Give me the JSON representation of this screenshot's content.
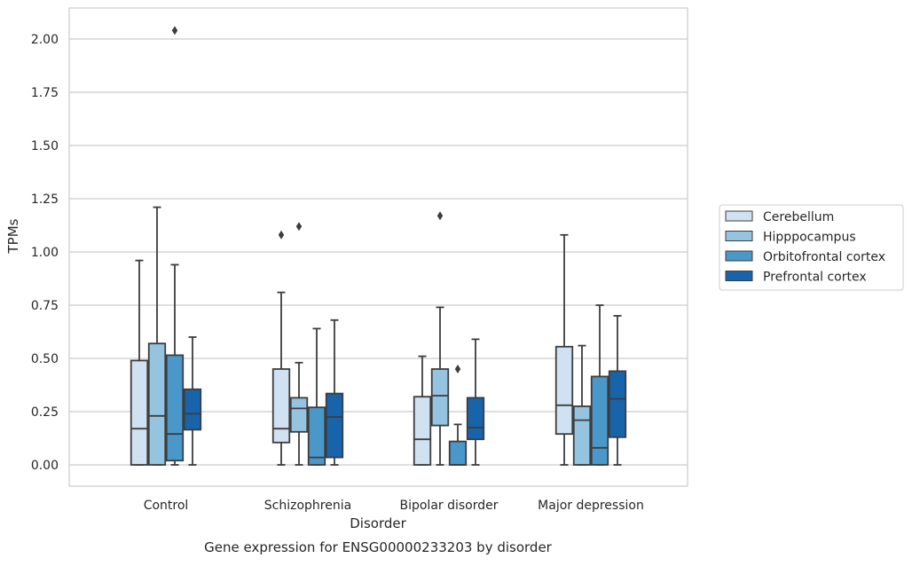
{
  "chart_data": {
    "type": "box",
    "title": "",
    "caption": "Gene expression for ENSG00000233203 by disorder",
    "xlabel": "Disorder",
    "ylabel": "TPMs",
    "ylim": [
      -0.1,
      2.15
    ],
    "yticks": [
      "0.00",
      "0.25",
      "0.50",
      "0.75",
      "1.00",
      "1.25",
      "1.50",
      "1.75",
      "2.00"
    ],
    "ytick_values": [
      0,
      0.25,
      0.5,
      0.75,
      1.0,
      1.25,
      1.5,
      1.75,
      2.0
    ],
    "grid": "horizontal",
    "legend_position": "right",
    "categories": [
      "Control",
      "Schizophrenia",
      "Bipolar disorder",
      "Major depression"
    ],
    "series": [
      {
        "name": "Cerebellum",
        "color": "#d0e1f2",
        "boxes": [
          {
            "min": 0.0,
            "q1": 0.0,
            "median": 0.17,
            "q3": 0.49,
            "max": 0.96,
            "outliers": []
          },
          {
            "min": 0.0,
            "q1": 0.105,
            "median": 0.17,
            "q3": 0.45,
            "max": 0.81,
            "outliers": [
              1.08
            ]
          },
          {
            "min": 0.0,
            "q1": 0.0,
            "median": 0.12,
            "q3": 0.32,
            "max": 0.51,
            "outliers": []
          },
          {
            "min": 0.0,
            "q1": 0.145,
            "median": 0.28,
            "q3": 0.555,
            "max": 1.08,
            "outliers": []
          }
        ]
      },
      {
        "name": "Hipppocampus",
        "color": "#94c4df",
        "boxes": [
          {
            "min": 0.0,
            "q1": 0.0,
            "median": 0.23,
            "q3": 0.57,
            "max": 1.21,
            "outliers": []
          },
          {
            "min": 0.0,
            "q1": 0.155,
            "median": 0.265,
            "q3": 0.315,
            "max": 0.48,
            "outliers": [
              1.12
            ]
          },
          {
            "min": 0.0,
            "q1": 0.185,
            "median": 0.325,
            "q3": 0.45,
            "max": 0.74,
            "outliers": [
              1.17
            ]
          },
          {
            "min": 0.0,
            "q1": 0.0,
            "median": 0.21,
            "q3": 0.275,
            "max": 0.56,
            "outliers": []
          }
        ]
      },
      {
        "name": "Orbitofrontal cortex",
        "color": "#4a98c9",
        "boxes": [
          {
            "min": 0.0,
            "q1": 0.02,
            "median": 0.145,
            "q3": 0.515,
            "max": 0.94,
            "outliers": [
              2.04
            ]
          },
          {
            "min": 0.0,
            "q1": 0.0,
            "median": 0.035,
            "q3": 0.27,
            "max": 0.64,
            "outliers": []
          },
          {
            "min": 0.0,
            "q1": 0.0,
            "median": 0.0,
            "q3": 0.11,
            "max": 0.19,
            "outliers": [
              0.45
            ]
          },
          {
            "min": 0.0,
            "q1": 0.0,
            "median": 0.08,
            "q3": 0.415,
            "max": 0.75,
            "outliers": []
          }
        ]
      },
      {
        "name": "Prefrontal cortex",
        "color": "#1764ab",
        "boxes": [
          {
            "min": 0.0,
            "q1": 0.165,
            "median": 0.24,
            "q3": 0.355,
            "max": 0.6,
            "outliers": []
          },
          {
            "min": 0.0,
            "q1": 0.035,
            "median": 0.225,
            "q3": 0.335,
            "max": 0.68,
            "outliers": []
          },
          {
            "min": 0.0,
            "q1": 0.12,
            "median": 0.175,
            "q3": 0.315,
            "max": 0.59,
            "outliers": []
          },
          {
            "min": 0.0,
            "q1": 0.13,
            "median": 0.31,
            "q3": 0.44,
            "max": 0.7,
            "outliers": []
          }
        ]
      }
    ]
  }
}
